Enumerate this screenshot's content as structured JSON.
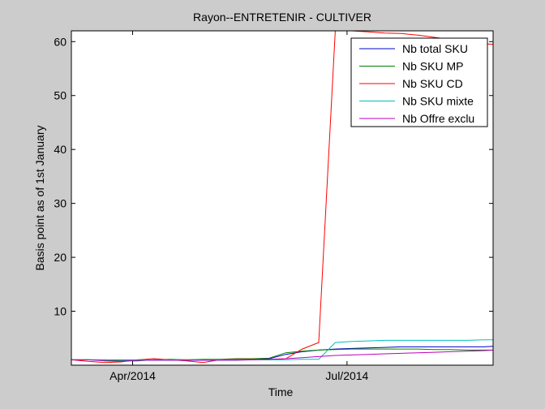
{
  "chart_data": {
    "type": "line",
    "title": "Rayon--ENTRETENIR - CULTIVER",
    "xlabel": "Time",
    "ylabel": "Basis point as of 1st January",
    "x_tick_labels": [
      "Apr/2014",
      "Jul/2014"
    ],
    "x_ticks": [
      "2014-04-01",
      "2014-07-01"
    ],
    "xlim": [
      "2014-03-06",
      "2014-09-01"
    ],
    "ylim": [
      0,
      62
    ],
    "yticks": [
      10,
      20,
      30,
      40,
      50,
      60
    ],
    "legend_position": "top-right",
    "x": [
      "2014-03-06",
      "2014-03-13",
      "2014-03-20",
      "2014-03-27",
      "2014-04-03",
      "2014-04-10",
      "2014-04-17",
      "2014-04-24",
      "2014-05-01",
      "2014-05-08",
      "2014-05-15",
      "2014-05-22",
      "2014-05-29",
      "2014-06-05",
      "2014-06-12",
      "2014-06-19",
      "2014-06-26",
      "2014-07-03",
      "2014-07-10",
      "2014-07-17",
      "2014-07-24",
      "2014-07-31",
      "2014-08-07",
      "2014-08-14",
      "2014-08-21",
      "2014-08-28",
      "2014-09-01"
    ],
    "series": [
      {
        "name": "Nb total SKU",
        "color": "#0000cc",
        "values": [
          1.0,
          1.0,
          1.0,
          0.95,
          0.9,
          1.0,
          1.0,
          1.0,
          1.0,
          1.0,
          1.1,
          1.1,
          1.2,
          2.0,
          2.5,
          2.8,
          3.0,
          3.1,
          3.2,
          3.3,
          3.4,
          3.4,
          3.4,
          3.4,
          3.4,
          3.4,
          3.5
        ]
      },
      {
        "name": "Nb SKU MP",
        "color": "#008000",
        "values": [
          1.0,
          1.0,
          0.9,
          0.8,
          0.8,
          1.0,
          1.1,
          1.0,
          1.1,
          1.1,
          1.2,
          1.2,
          1.3,
          2.3,
          2.6,
          2.8,
          2.9,
          3.0,
          3.0,
          3.0,
          3.0,
          3.0,
          2.9,
          2.9,
          2.8,
          2.8,
          2.8
        ]
      },
      {
        "name": "Nb SKU CD",
        "color": "#ff0000",
        "values": [
          1.0,
          0.7,
          0.5,
          0.6,
          1.0,
          1.2,
          1.0,
          0.8,
          0.5,
          1.0,
          1.1,
          1.1,
          1.0,
          1.2,
          3.0,
          4.2,
          62.0,
          62.0,
          61.8,
          61.6,
          61.5,
          61.2,
          60.8,
          60.4,
          60.0,
          59.6,
          59.5
        ]
      },
      {
        "name": "Nb SKU mixte",
        "color": "#00bfbf",
        "values": [
          1.0,
          1.0,
          1.0,
          1.0,
          1.0,
          1.0,
          1.0,
          1.0,
          1.0,
          1.0,
          1.0,
          1.0,
          1.0,
          1.0,
          1.1,
          1.1,
          4.2,
          4.4,
          4.5,
          4.6,
          4.6,
          4.6,
          4.6,
          4.6,
          4.6,
          4.7,
          4.7
        ]
      },
      {
        "name": "Nb Offre exclu",
        "color": "#bf00bf",
        "values": [
          1.0,
          1.0,
          0.8,
          0.7,
          0.9,
          0.9,
          0.9,
          0.9,
          0.9,
          0.9,
          0.9,
          1.0,
          1.1,
          1.2,
          1.4,
          1.6,
          1.8,
          1.9,
          2.0,
          2.1,
          2.2,
          2.3,
          2.4,
          2.5,
          2.6,
          2.7,
          2.8
        ]
      }
    ]
  }
}
